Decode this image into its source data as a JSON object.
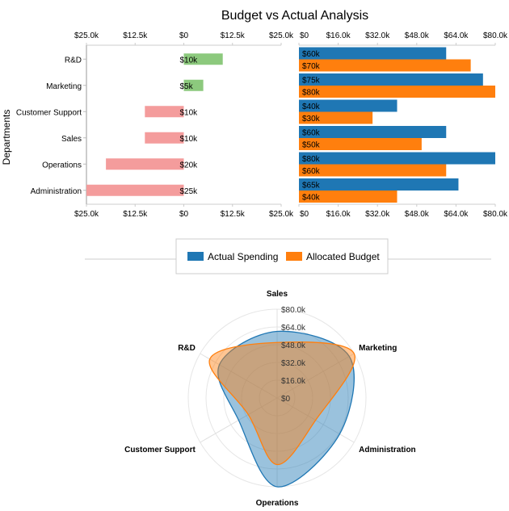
{
  "chart_data": [
    {
      "type": "bar",
      "title": "Budget vs Actual Analysis",
      "orientation": "horizontal",
      "ylabel": "Departments",
      "categories": [
        "R&D",
        "Marketing",
        "Customer Support",
        "Sales",
        "Operations",
        "Administration"
      ],
      "values": [
        10,
        5,
        -10,
        -10,
        -20,
        -25
      ],
      "data_labels": [
        "$10k",
        "$5k",
        "$10k",
        "$10k",
        "$20k",
        "$25k"
      ],
      "xlim": [
        -25,
        25
      ],
      "xticks": [
        "$25.0k",
        "$12.5k",
        "$0",
        "$12.5k",
        "$25.0k"
      ],
      "colors": {
        "positive": "#8cc97d",
        "negative": "#f49c9c"
      }
    },
    {
      "type": "bar",
      "orientation": "horizontal",
      "categories": [
        "R&D",
        "Marketing",
        "Customer Support",
        "Sales",
        "Operations",
        "Administration"
      ],
      "series": [
        {
          "name": "Actual Spending",
          "values": [
            60,
            75,
            40,
            60,
            80,
            65
          ],
          "labels": [
            "$60k",
            "$75k",
            "$40k",
            "$60k",
            "$80k",
            "$65k"
          ],
          "color": "#1f77b4"
        },
        {
          "name": "Allocated Budget",
          "values": [
            70,
            80,
            30,
            50,
            60,
            40
          ],
          "labels": [
            "$70k",
            "$80k",
            "$30k",
            "$50k",
            "$60k",
            "$40k"
          ],
          "color": "#ff7f0e"
        }
      ],
      "xlim": [
        0,
        80
      ],
      "xticks": [
        "$0",
        "$16.0k",
        "$32.0k",
        "$48.0k",
        "$64.0k",
        "$80.0k"
      ]
    },
    {
      "type": "radar",
      "axes": [
        "Sales",
        "Marketing",
        "Administration",
        "Operations",
        "Customer Support",
        "R&D"
      ],
      "series": [
        {
          "name": "Actual Spending",
          "values": [
            60,
            75,
            65,
            80,
            40,
            60
          ],
          "color": "#1f77b4"
        },
        {
          "name": "Allocated Budget",
          "values": [
            50,
            80,
            40,
            60,
            30,
            70
          ],
          "color": "#ff7f0e"
        }
      ],
      "rlim": [
        0,
        80
      ],
      "rticks": [
        "$0",
        "$16.0k",
        "$32.0k",
        "$48.0k",
        "$64.0k",
        "$80.0k"
      ]
    }
  ],
  "legend": {
    "items": [
      "Actual Spending",
      "Allocated Budget"
    ],
    "placement": "center"
  }
}
